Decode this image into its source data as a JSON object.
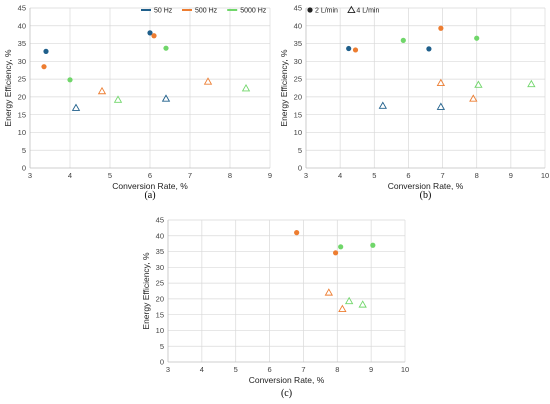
{
  "colors": {
    "50 Hz": "#1f5f8b",
    "500 Hz": "#ed7d31",
    "5000 Hz": "#70d66a",
    "circle": "#222222",
    "triangle": "#222222"
  },
  "chart_data": [
    {
      "id": "a",
      "type": "scatter",
      "caption": "(a)",
      "xlabel": "Conversion Rate, %",
      "ylabel": "Energy Efficiency, %",
      "xlim": [
        3,
        9
      ],
      "ylim": [
        0,
        45
      ],
      "xticks": [
        3,
        4,
        5,
        6,
        7,
        8,
        9
      ],
      "yticks": [
        0,
        5,
        10,
        15,
        20,
        25,
        30,
        35,
        40,
        45
      ],
      "grid": true,
      "legend_position": "top-right",
      "legend": [
        {
          "label": "50 Hz",
          "color_key": "50 Hz",
          "marker": "line"
        },
        {
          "label": "500 Hz",
          "color_key": "500 Hz",
          "marker": "line"
        },
        {
          "label": "5000 Hz",
          "color_key": "5000 Hz",
          "marker": "line"
        }
      ],
      "series": [
        {
          "color_key": "50 Hz",
          "marker": "circle",
          "points": [
            [
              3.4,
              32.8
            ],
            [
              6.0,
              38.0
            ]
          ]
        },
        {
          "color_key": "500 Hz",
          "marker": "circle",
          "points": [
            [
              3.35,
              28.5
            ],
            [
              6.1,
              37.2
            ]
          ]
        },
        {
          "color_key": "5000 Hz",
          "marker": "circle",
          "points": [
            [
              4.0,
              24.8
            ],
            [
              6.4,
              33.7
            ]
          ]
        },
        {
          "color_key": "50 Hz",
          "marker": "triangle",
          "points": [
            [
              4.15,
              16.9
            ],
            [
              6.4,
              19.5
            ]
          ]
        },
        {
          "color_key": "500 Hz",
          "marker": "triangle",
          "points": [
            [
              4.8,
              21.6
            ],
            [
              7.45,
              24.3
            ]
          ]
        },
        {
          "color_key": "5000 Hz",
          "marker": "triangle",
          "points": [
            [
              5.2,
              19.2
            ],
            [
              8.4,
              22.4
            ]
          ]
        }
      ]
    },
    {
      "id": "b",
      "type": "scatter",
      "caption": "(b)",
      "xlabel": "Conversion Rate, %",
      "ylabel": "Energy Efficiency, %",
      "xlim": [
        3,
        10
      ],
      "ylim": [
        0,
        45
      ],
      "xticks": [
        3,
        4,
        5,
        6,
        7,
        8,
        9,
        10
      ],
      "yticks": [
        0,
        5,
        10,
        15,
        20,
        25,
        30,
        35,
        40,
        45
      ],
      "grid": true,
      "legend_position": "top-left",
      "legend": [
        {
          "label": "2 L/min",
          "color_key": "circle",
          "marker": "circle"
        },
        {
          "label": "4 L/min",
          "color_key": "triangle",
          "marker": "triangle"
        }
      ],
      "series": [
        {
          "color_key": "50 Hz",
          "marker": "circle",
          "points": [
            [
              4.25,
              33.6
            ],
            [
              6.6,
              33.5
            ]
          ]
        },
        {
          "color_key": "500 Hz",
          "marker": "circle",
          "points": [
            [
              4.45,
              33.2
            ],
            [
              6.95,
              39.3
            ]
          ]
        },
        {
          "color_key": "5000 Hz",
          "marker": "circle",
          "points": [
            [
              5.85,
              35.9
            ],
            [
              8.0,
              36.5
            ]
          ]
        },
        {
          "color_key": "50 Hz",
          "marker": "triangle",
          "points": [
            [
              5.25,
              17.5
            ],
            [
              6.95,
              17.2
            ]
          ]
        },
        {
          "color_key": "500 Hz",
          "marker": "triangle",
          "points": [
            [
              6.95,
              23.9
            ],
            [
              7.9,
              19.5
            ]
          ]
        },
        {
          "color_key": "5000 Hz",
          "marker": "triangle",
          "points": [
            [
              8.05,
              23.4
            ],
            [
              9.6,
              23.6
            ]
          ]
        }
      ]
    },
    {
      "id": "c",
      "type": "scatter",
      "caption": "(c)",
      "xlabel": "Conversion Rate, %",
      "ylabel": "Energy Efficiency, %",
      "xlim": [
        3,
        10
      ],
      "ylim": [
        0,
        45
      ],
      "xticks": [
        3,
        4,
        5,
        6,
        7,
        8,
        9,
        10
      ],
      "yticks": [
        0,
        5,
        10,
        15,
        20,
        25,
        30,
        35,
        40,
        45
      ],
      "grid": true,
      "legend_position": "none",
      "legend": [],
      "series": [
        {
          "color_key": "500 Hz",
          "marker": "circle",
          "points": [
            [
              6.8,
              41.0
            ],
            [
              7.95,
              34.6
            ]
          ]
        },
        {
          "color_key": "5000 Hz",
          "marker": "circle",
          "points": [
            [
              8.1,
              36.5
            ],
            [
              9.05,
              37.0
            ]
          ]
        },
        {
          "color_key": "500 Hz",
          "marker": "triangle",
          "points": [
            [
              7.75,
              22.0
            ],
            [
              8.15,
              16.8
            ]
          ]
        },
        {
          "color_key": "5000 Hz",
          "marker": "triangle",
          "points": [
            [
              8.35,
              19.3
            ],
            [
              8.75,
              18.2
            ]
          ]
        }
      ]
    }
  ]
}
